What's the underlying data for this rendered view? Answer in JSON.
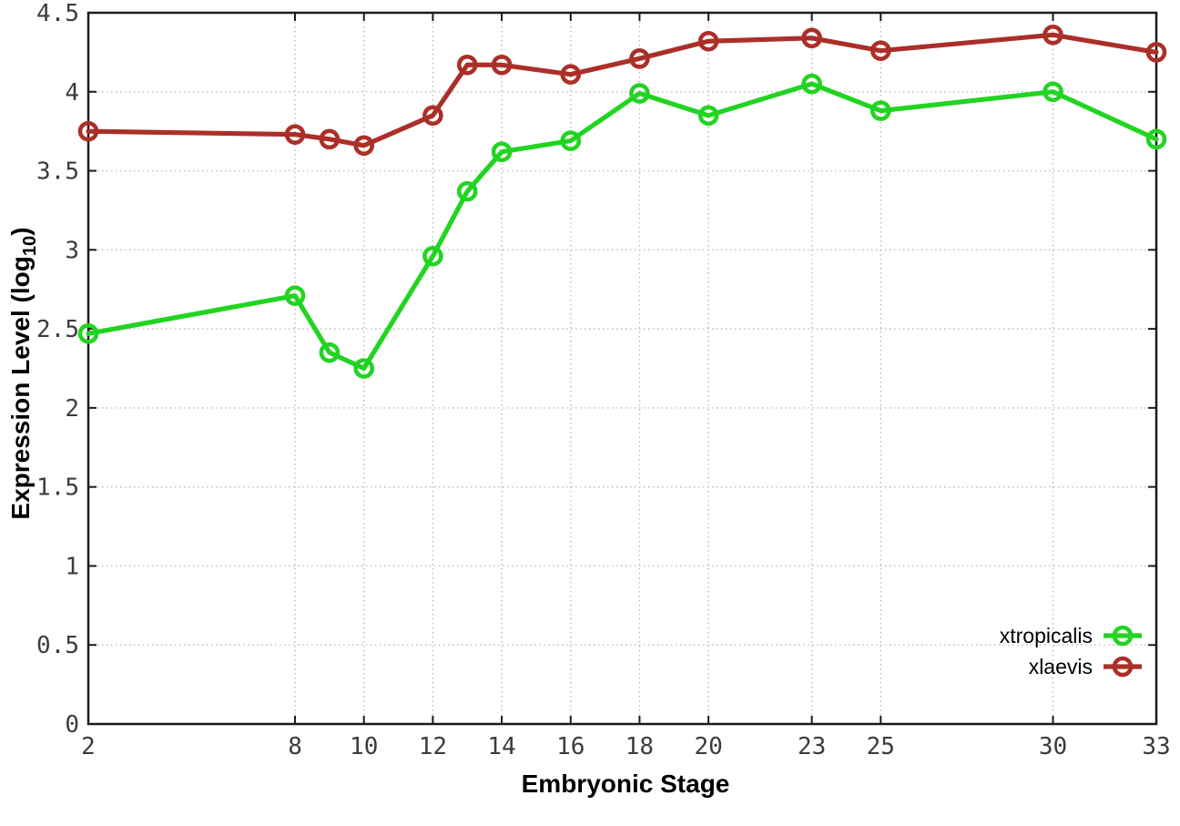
{
  "chart_data": {
    "type": "line",
    "title": "",
    "xlabel": "Embryonic Stage",
    "ylabel": "Expression Level (log10)",
    "ylabel_main": "Expression Level (log",
    "ylabel_sub": "10",
    "ylabel_close": ")",
    "xlim": [
      2,
      33
    ],
    "ylim": [
      0,
      4.5
    ],
    "grid": true,
    "legend_position": "inside bottom-right",
    "marker": "open-circle",
    "x_ticks": [
      2,
      8,
      10,
      12,
      14,
      16,
      18,
      20,
      23,
      25,
      30,
      33
    ],
    "x_tick_labels": [
      "2",
      "8",
      "10",
      "12",
      "14",
      "16",
      "18",
      "20",
      "23",
      "25",
      "30",
      "33"
    ],
    "y_ticks": [
      0,
      0.5,
      1,
      1.5,
      2,
      2.5,
      3,
      3.5,
      4,
      4.5
    ],
    "y_tick_labels": [
      "0",
      "0.5",
      "1",
      "1.5",
      "2",
      "2.5",
      "3",
      "3.5",
      "4",
      "4.5"
    ],
    "x": [
      2,
      8,
      9,
      10,
      12,
      13,
      14,
      16,
      18,
      20,
      23,
      25,
      30,
      33
    ],
    "series": [
      {
        "name": "xtropicalis",
        "color": "#22d422",
        "values": [
          2.47,
          2.71,
          2.35,
          2.25,
          2.96,
          3.37,
          3.62,
          3.69,
          3.99,
          3.85,
          4.05,
          3.88,
          4.0,
          3.7
        ]
      },
      {
        "name": "xlaevis",
        "color": "#ab2f28",
        "values": [
          3.75,
          3.73,
          3.7,
          3.66,
          3.85,
          4.17,
          4.17,
          4.11,
          4.21,
          4.32,
          4.34,
          4.26,
          4.36,
          4.25
        ]
      }
    ],
    "colors": {
      "grid": "#bbbbbb",
      "axis": "#1a1a1a",
      "tick_text": "#3c3c3c",
      "background": "#ffffff"
    }
  }
}
